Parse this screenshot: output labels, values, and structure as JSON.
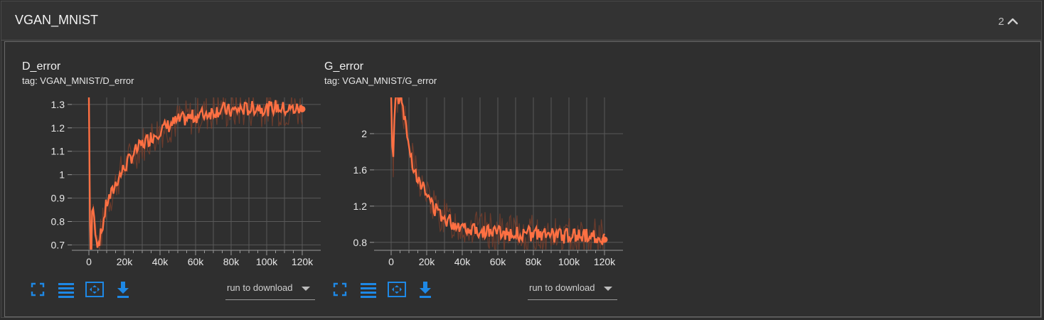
{
  "section": {
    "title": "VGAN_MNIST",
    "count": "2",
    "icons": {
      "collapse": "chevron-up-icon"
    }
  },
  "colors": {
    "line": "#ff7043",
    "raw": "#7a3e2c",
    "grid": "#595959",
    "axis_text": "#e8e8e8",
    "accent": "#1e88e5"
  },
  "toolbar_icons": [
    "fullscreen-icon",
    "list-icon",
    "fit-domain-icon",
    "download-icon"
  ],
  "cards": [
    {
      "title": "D_error",
      "tag": "tag: VGAN_MNIST/D_error",
      "run_select": "run to download",
      "y_ticks": [
        "1.3",
        "1.2",
        "1.1",
        "1",
        "0.9",
        "0.8",
        "0.7"
      ],
      "x_ticks": [
        "0",
        "20k",
        "40k",
        "60k",
        "80k",
        "100k",
        "120k"
      ]
    },
    {
      "title": "G_error",
      "tag": "tag: VGAN_MNIST/G_error",
      "run_select": "run to download",
      "y_ticks": [
        "2",
        "1.6",
        "1.2",
        "0.8"
      ],
      "x_ticks": [
        "0",
        "20k",
        "40k",
        "60k",
        "80k",
        "100k",
        "120k"
      ]
    }
  ],
  "chart_data": [
    {
      "type": "line",
      "title": "D_error",
      "xlim": [
        0,
        120000
      ],
      "ylim": [
        0.68,
        1.33
      ],
      "grid": true,
      "series": [
        {
          "x": [
            0,
            1000,
            2000,
            3000,
            5000,
            7000,
            10000,
            13000,
            16000,
            20000,
            25000,
            30000,
            35000,
            40000,
            45000,
            50000,
            55000,
            60000,
            65000,
            70000,
            75000,
            80000,
            85000,
            90000,
            95000,
            100000,
            105000,
            110000,
            115000,
            120000
          ],
          "y": [
            1.33,
            0.5,
            0.9,
            0.8,
            0.7,
            0.75,
            0.88,
            0.92,
            0.98,
            1.03,
            1.09,
            1.13,
            1.16,
            1.19,
            1.21,
            1.23,
            1.24,
            1.25,
            1.26,
            1.27,
            1.28,
            1.27,
            1.28,
            1.28,
            1.29,
            1.28,
            1.29,
            1.28,
            1.28,
            1.28
          ]
        }
      ]
    },
    {
      "type": "line",
      "title": "G_error",
      "xlim": [
        0,
        120000
      ],
      "ylim": [
        0.72,
        2.4
      ],
      "grid": true,
      "series": [
        {
          "x": [
            0,
            1000,
            2000,
            4000,
            6000,
            8000,
            10000,
            13000,
            16000,
            20000,
            25000,
            30000,
            35000,
            40000,
            45000,
            50000,
            55000,
            60000,
            65000,
            70000,
            75000,
            80000,
            85000,
            90000,
            95000,
            100000,
            105000,
            110000,
            115000,
            120000
          ],
          "y": [
            2.4,
            1.5,
            2.4,
            2.4,
            2.4,
            2.1,
            1.85,
            1.62,
            1.48,
            1.32,
            1.16,
            1.07,
            1.01,
            0.98,
            0.96,
            0.93,
            0.92,
            0.91,
            0.9,
            0.89,
            0.9,
            0.89,
            0.88,
            0.88,
            0.87,
            0.87,
            0.88,
            0.87,
            0.87,
            0.83
          ]
        }
      ]
    }
  ]
}
